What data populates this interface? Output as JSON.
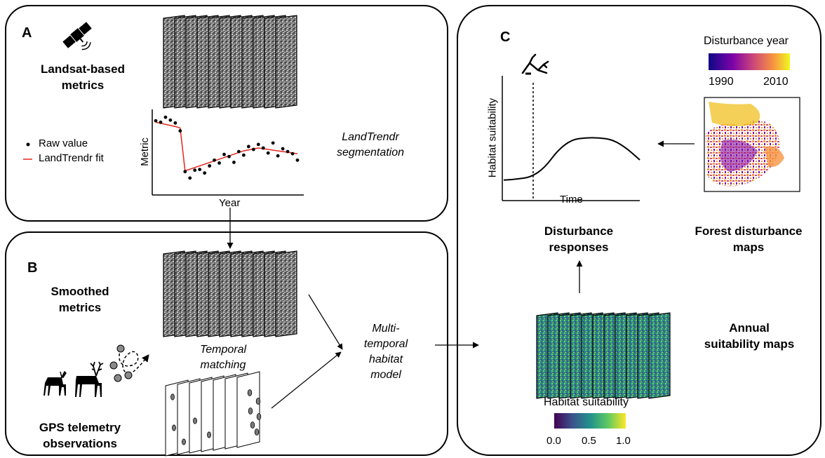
{
  "panels": {
    "a": {
      "letter": "A",
      "metrics_title": [
        "Landsat-based",
        "metrics"
      ],
      "legend": {
        "raw": "Raw value",
        "fit": "LandTrendr fit"
      },
      "plot": {
        "ylabel": "Metric",
        "xlabel": "Year"
      },
      "method": [
        "LandTrendr",
        "segmentation"
      ]
    },
    "b": {
      "letter": "B",
      "smoothed_title": [
        "Smoothed",
        "metrics"
      ],
      "matching": [
        "Temporal",
        "matching"
      ],
      "gps_title": [
        "GPS telemetry",
        "observations"
      ],
      "model": [
        "Multi-",
        "temporal",
        "habitat",
        "model"
      ]
    },
    "c": {
      "letter": "C",
      "colorbar_title": "Disturbance year",
      "colorbar_ticks": [
        "1990",
        "2010"
      ],
      "plot": {
        "ylabel": "Habitat suitability",
        "xlabel": "Time"
      },
      "responses_title": [
        "Disturbance",
        "responses"
      ],
      "maps_title": [
        "Forest disturbance",
        "maps"
      ],
      "annual_title": [
        "Annual",
        "suitability maps"
      ],
      "hs_title": "Habitat suitability",
      "hs_ticks": [
        "0.0",
        "0.5",
        "1.0"
      ]
    }
  },
  "colors": {
    "fit_line": "#e3261c",
    "viridis": [
      "#440154",
      "#3b528b",
      "#21918c",
      "#5ec962",
      "#fde725"
    ],
    "plasma": [
      "#0d0887",
      "#7e03a8",
      "#cc4778",
      "#f89540",
      "#f0f921"
    ]
  },
  "icons": [
    "satellite-icon",
    "deer-icon",
    "elk-icon",
    "gps-track-icon",
    "fallen-tree-icon"
  ],
  "chart_data": [
    {
      "type": "scatter",
      "description_series": "raw",
      "x": [
        1,
        2,
        3,
        4,
        5,
        6,
        7,
        8,
        9,
        10,
        11,
        12,
        13,
        14,
        15,
        16,
        17,
        18,
        19,
        20,
        21,
        22,
        23,
        24,
        25,
        26,
        27,
        28,
        29,
        30
      ],
      "y": [
        0.88,
        0.86,
        0.93,
        0.89,
        0.85,
        0.74,
        0.17,
        0.08,
        0.19,
        0.2,
        0.15,
        0.25,
        0.33,
        0.29,
        0.41,
        0.38,
        0.3,
        0.45,
        0.4,
        0.52,
        0.48,
        0.55,
        0.5,
        0.43,
        0.57,
        0.39,
        0.49,
        0.45,
        0.42,
        0.33
      ],
      "fit_x": [
        1,
        5,
        6,
        7,
        19,
        22,
        30
      ],
      "fit_y": [
        0.86,
        0.8,
        0.78,
        0.18,
        0.46,
        0.5,
        0.42
      ],
      "xlabel": "Year",
      "ylabel": "Metric"
    },
    {
      "type": "line",
      "x": [
        0,
        0.1,
        0.2,
        0.3,
        0.4,
        0.5,
        0.6,
        0.7,
        0.8,
        0.9,
        1.0
      ],
      "y": [
        0.3,
        0.31,
        0.33,
        0.42,
        0.6,
        0.7,
        0.72,
        0.72,
        0.7,
        0.62,
        0.5
      ],
      "disturbance_x": 0.22,
      "xlabel": "Time",
      "ylabel": "Habitat suitability"
    }
  ]
}
